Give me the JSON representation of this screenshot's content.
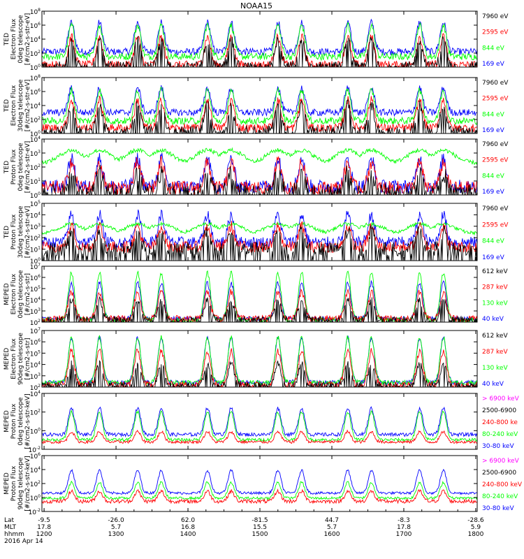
{
  "title": "NOAA15",
  "colors": {
    "blue": "#0000ff",
    "red": "#ff0000",
    "green": "#00ff00",
    "black": "#000000",
    "magenta": "#ff00ff"
  },
  "chart_data": [
    {
      "type": "line",
      "title": "",
      "ylabel_lines": [
        "TED",
        "Electron Flux",
        "0deg telescope",
        "[#/cm2-s-str-eV]"
      ],
      "ytick_labels": [
        "10^8",
        "10^6",
        "10^4",
        "10^2",
        "10^0"
      ],
      "ylim_log10": [
        0,
        8
      ],
      "legend": [
        {
          "label": "7960 eV",
          "color": "black"
        },
        {
          "label": "2595 eV",
          "color": "red"
        },
        {
          "label": "844 eV",
          "color": "green"
        },
        {
          "label": "169 eV",
          "color": "blue"
        }
      ],
      "series": [
        {
          "name": "169 eV",
          "color": "blue",
          "base": 2.2,
          "amp": 4.2,
          "noise": 0.5
        },
        {
          "name": "844 eV",
          "color": "green",
          "base": 1.5,
          "amp": 4.5,
          "noise": 0.5
        },
        {
          "name": "2595 eV",
          "color": "red",
          "base": 0.3,
          "amp": 4.0,
          "noise": 0.6
        },
        {
          "name": "7960 eV",
          "color": "black",
          "base": 0.1,
          "amp": 3.8,
          "noise": 0.7
        }
      ]
    },
    {
      "type": "line",
      "title": "",
      "ylabel_lines": [
        "TED",
        "Electron Flux",
        "30deg telescope",
        "[#/cm2-s-str-eV]"
      ],
      "ytick_labels": [
        "10^8",
        "10^6",
        "10^4",
        "10^2",
        "10^0"
      ],
      "ylim_log10": [
        0,
        8
      ],
      "legend": [
        {
          "label": "7960 eV",
          "color": "black"
        },
        {
          "label": "2595 eV",
          "color": "red"
        },
        {
          "label": "844 eV",
          "color": "green"
        },
        {
          "label": "169 eV",
          "color": "blue"
        }
      ],
      "series": [
        {
          "name": "169 eV",
          "color": "blue",
          "base": 3.0,
          "amp": 3.5,
          "noise": 0.5
        },
        {
          "name": "844 eV",
          "color": "green",
          "base": 1.8,
          "amp": 4.4,
          "noise": 0.5
        },
        {
          "name": "2595 eV",
          "color": "red",
          "base": 0.8,
          "amp": 4.0,
          "noise": 0.6
        },
        {
          "name": "7960 eV",
          "color": "black",
          "base": 0.3,
          "amp": 3.8,
          "noise": 0.8
        }
      ]
    },
    {
      "type": "line",
      "title": "",
      "ylabel_lines": [
        "TED",
        "Proton Flux",
        "0deg telescope",
        "[#/cm2-s-str-eV]"
      ],
      "ytick_labels": [
        "10^4",
        "10^3",
        "10^2",
        "10^1",
        "10^0"
      ],
      "ylim_log10": [
        0,
        4
      ],
      "legend": [
        {
          "label": "7960 eV",
          "color": "black"
        },
        {
          "label": "2595 eV",
          "color": "red"
        },
        {
          "label": "844 eV",
          "color": "green"
        },
        {
          "label": "169 eV",
          "color": "blue"
        }
      ],
      "series": [
        {
          "name": "169 eV",
          "color": "blue",
          "base": 0.6,
          "amp": 2.0,
          "noise": 0.5
        },
        {
          "name": "844 eV",
          "color": "green",
          "base": 2.3,
          "amp": 0.9,
          "noise": 0.15
        },
        {
          "name": "2595 eV",
          "color": "red",
          "base": 0.5,
          "amp": 1.8,
          "noise": 0.5
        },
        {
          "name": "7960 eV",
          "color": "black",
          "base": 0.2,
          "amp": 1.4,
          "noise": 0.6
        }
      ]
    },
    {
      "type": "line",
      "title": "",
      "ylabel_lines": [
        "TED",
        "Proton Flux",
        "30deg telescope",
        "[#/cm2-s-str-eV]"
      ],
      "ytick_labels": [
        "10^5",
        "10^4",
        "10^3",
        "10^2",
        "10^1",
        "10^0"
      ],
      "ylim_log10": [
        0,
        5
      ],
      "legend": [
        {
          "label": "7960 eV",
          "color": "black"
        },
        {
          "label": "2595 eV",
          "color": "red"
        },
        {
          "label": "844 eV",
          "color": "green"
        },
        {
          "label": "169 eV",
          "color": "blue"
        }
      ],
      "series": [
        {
          "name": "169 eV",
          "color": "blue",
          "base": 1.6,
          "amp": 2.4,
          "noise": 0.5
        },
        {
          "name": "844 eV",
          "color": "green",
          "base": 2.4,
          "amp": 0.8,
          "noise": 0.15
        },
        {
          "name": "2595 eV",
          "color": "red",
          "base": 1.2,
          "amp": 1.8,
          "noise": 0.5
        },
        {
          "name": "7960 eV",
          "color": "black",
          "base": 1.0,
          "amp": 1.6,
          "noise": 0.6
        }
      ]
    },
    {
      "type": "line",
      "title": "",
      "ylabel_lines": [
        "MEPED",
        "Electron Flux",
        "0deg telescope",
        "[#/cm2-s-str]"
      ],
      "ytick_labels": [
        "10^7",
        "10^6",
        "10^5",
        "10^4",
        "10^3",
        "10^2"
      ],
      "ylim_log10": [
        2,
        7
      ],
      "legend": [
        {
          "label": "612 keV",
          "color": "black"
        },
        {
          "label": "287 keV",
          "color": "red"
        },
        {
          "label": "130 keV",
          "color": "green"
        },
        {
          "label": "40 keV",
          "color": "blue"
        }
      ],
      "series": [
        {
          "name": "40 keV",
          "color": "blue",
          "base": 2.3,
          "amp": 3.2,
          "noise": 0.2
        },
        {
          "name": "130 keV",
          "color": "green",
          "base": 2.2,
          "amp": 4.2,
          "noise": 0.2
        },
        {
          "name": "287 keV",
          "color": "red",
          "base": 2.3,
          "amp": 2.4,
          "noise": 0.3
        },
        {
          "name": "612 keV",
          "color": "black",
          "base": 2.2,
          "amp": 1.8,
          "noise": 0.3
        }
      ]
    },
    {
      "type": "line",
      "title": "",
      "ylabel_lines": [
        "MEPED",
        "Electron Flux",
        "90deg telescope",
        "[#/cm2-s-str]"
      ],
      "ytick_labels": [
        "10^7",
        "10^6",
        "10^5",
        "10^4",
        "10^3",
        "10^2"
      ],
      "ylim_log10": [
        2,
        7
      ],
      "legend": [
        {
          "label": "612 keV",
          "color": "black"
        },
        {
          "label": "287 keV",
          "color": "red"
        },
        {
          "label": "130 keV",
          "color": "green"
        },
        {
          "label": "40 keV",
          "color": "blue"
        }
      ],
      "series": [
        {
          "name": "40 keV",
          "color": "blue",
          "base": 2.4,
          "amp": 4.0,
          "noise": 0.2
        },
        {
          "name": "130 keV",
          "color": "green",
          "base": 2.4,
          "amp": 4.0,
          "noise": 0.2
        },
        {
          "name": "287 keV",
          "color": "red",
          "base": 2.2,
          "amp": 3.0,
          "noise": 0.3
        },
        {
          "name": "612 keV",
          "color": "black",
          "base": 2.1,
          "amp": 2.0,
          "noise": 0.3
        }
      ]
    },
    {
      "type": "line",
      "title": "",
      "ylabel_lines": [
        "MEPED",
        "Proton Flux",
        "0deg telescope",
        "[#/cm2-s-str-keV]"
      ],
      "ytick_labels": [
        "10^4",
        "10^2",
        "10^0",
        "10^-2"
      ],
      "ylim_log10": [
        -2.6,
        5
      ],
      "legend": [
        {
          "label": "> 6900 keV",
          "color": "magenta"
        },
        {
          "label": "2500-6900",
          "color": "black"
        },
        {
          "label": "240-800 ke",
          "color": "red"
        },
        {
          "label": "80-240 keV",
          "color": "green"
        },
        {
          "label": "30-80 keV",
          "color": "blue"
        }
      ],
      "series": [
        {
          "name": "30-80 keV",
          "color": "blue",
          "base": -0.6,
          "amp": 3.6,
          "noise": 0.25
        },
        {
          "name": "80-240 keV",
          "color": "green",
          "base": -1.3,
          "amp": 3.8,
          "noise": 0.2
        },
        {
          "name": "240-800 ke",
          "color": "red",
          "base": -1.6,
          "amp": 1.4,
          "noise": 0.2
        }
      ]
    },
    {
      "type": "line",
      "title": "",
      "ylabel_lines": [
        "MEPED",
        "Proton Flux",
        "90deg telescope",
        "[#/cm2-s-str-keV]"
      ],
      "ytick_labels": [
        "10^6",
        "10^4",
        "10^2",
        "10^0",
        "10^-2"
      ],
      "ylim_log10": [
        -2.6,
        6.2
      ],
      "legend": [
        {
          "label": "> 6900 keV",
          "color": "magenta"
        },
        {
          "label": "2500-6900",
          "color": "black"
        },
        {
          "label": "240-800 keV",
          "color": "red"
        },
        {
          "label": "80-240 keV",
          "color": "green"
        },
        {
          "label": "30-80 keV",
          "color": "blue"
        }
      ],
      "series": [
        {
          "name": "30-80 keV",
          "color": "blue",
          "base": 0.3,
          "amp": 3.6,
          "noise": 0.2
        },
        {
          "name": "80-240 keV",
          "color": "green",
          "base": -0.5,
          "amp": 2.5,
          "noise": 0.2
        },
        {
          "name": "240-800 keV",
          "color": "red",
          "base": -1.0,
          "amp": 1.6,
          "noise": 0.3
        }
      ]
    }
  ],
  "x_axis": {
    "range_hours": [
      11.97,
      18.02
    ],
    "pass_centers_hours": [
      12.38,
      12.77,
      13.3,
      13.63,
      14.27,
      14.6,
      15.25,
      15.58,
      16.22,
      16.55,
      17.22,
      17.55
    ],
    "row_labels": [
      "Lat",
      "MLT",
      "hhmm",
      "2016 Apr 14"
    ],
    "ticks": [
      {
        "hours": 12.0,
        "lat": "-9.5",
        "mlt": "17.8",
        "hhmm": "1200"
      },
      {
        "hours": 13.0,
        "lat": "-26.0",
        "mlt": "5.7",
        "hhmm": "1300"
      },
      {
        "hours": 14.0,
        "lat": "62.0",
        "mlt": "16.8",
        "hhmm": "1400"
      },
      {
        "hours": 15.0,
        "lat": "-81.5",
        "mlt": "15.5",
        "hhmm": "1500"
      },
      {
        "hours": 16.0,
        "lat": "44.7",
        "mlt": "5.7",
        "hhmm": "1600"
      },
      {
        "hours": 17.0,
        "lat": "-8.3",
        "mlt": "17.8",
        "hhmm": "1700"
      },
      {
        "hours": 18.0,
        "lat": "-28.6",
        "mlt": "5.9",
        "hhmm": "1800"
      }
    ]
  }
}
